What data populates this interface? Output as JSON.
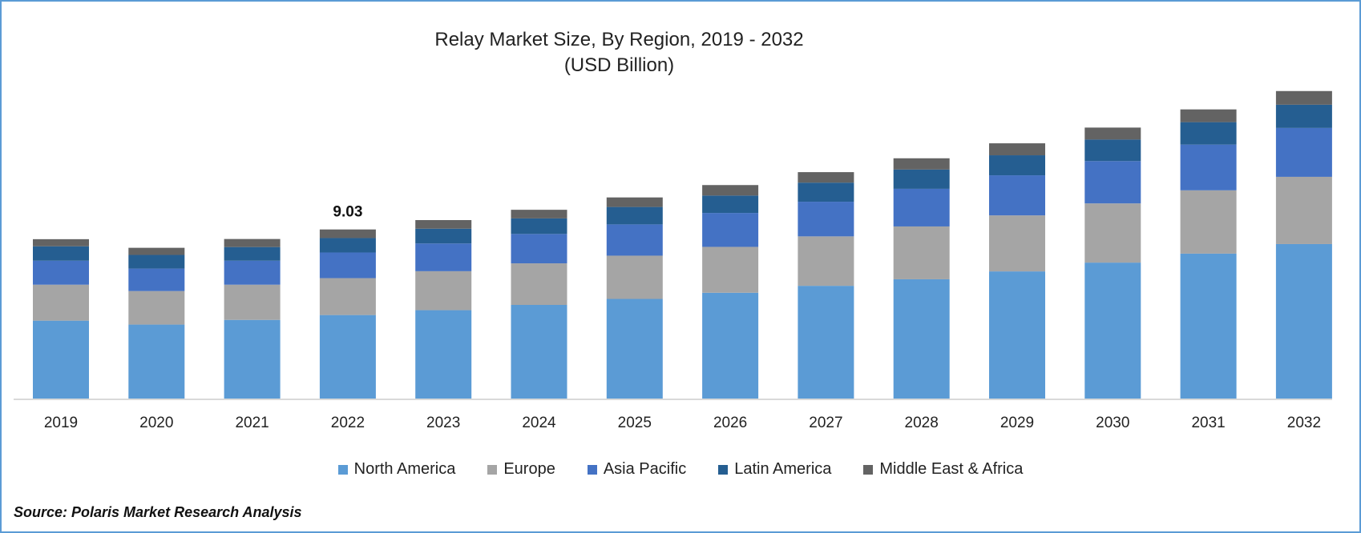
{
  "chart_data": {
    "type": "bar",
    "stacked": true,
    "title": "Relay Market Size, By Region, 2019 - 2032",
    "subtitle": "(USD Billion)",
    "categories": [
      "2019",
      "2020",
      "2021",
      "2022",
      "2023",
      "2024",
      "2025",
      "2026",
      "2027",
      "2028",
      "2029",
      "2030",
      "2031",
      "2032"
    ],
    "series": [
      {
        "name": "North America",
        "color": "#5b9bd5",
        "values": [
          4.16,
          3.95,
          4.2,
          4.46,
          4.72,
          5.0,
          5.32,
          5.65,
          6.02,
          6.37,
          6.79,
          7.26,
          7.74,
          8.25
        ]
      },
      {
        "name": "Europe",
        "color": "#a5a5a5",
        "values": [
          1.92,
          1.79,
          1.88,
          1.97,
          2.08,
          2.22,
          2.31,
          2.45,
          2.64,
          2.82,
          2.99,
          3.16,
          3.38,
          3.59
        ]
      },
      {
        "name": "Asia Pacific",
        "color": "#4472c4",
        "values": [
          1.28,
          1.2,
          1.28,
          1.37,
          1.48,
          1.57,
          1.67,
          1.81,
          1.85,
          2.01,
          2.14,
          2.26,
          2.44,
          2.61
        ]
      },
      {
        "name": "Latin America",
        "color": "#255e91",
        "values": [
          0.77,
          0.73,
          0.73,
          0.77,
          0.79,
          0.83,
          0.93,
          0.93,
          1.02,
          1.03,
          1.07,
          1.15,
          1.2,
          1.24
        ]
      },
      {
        "name": "Middle East & Africa",
        "color": "#636363",
        "values": [
          0.38,
          0.38,
          0.43,
          0.46,
          0.46,
          0.46,
          0.51,
          0.56,
          0.56,
          0.6,
          0.64,
          0.64,
          0.68,
          0.73
        ]
      }
    ],
    "annotations": [
      {
        "category": "2022",
        "label": "9.03"
      }
    ],
    "legend_position": "bottom",
    "grid": false,
    "yaxis_visible": false
  },
  "source": "Source: Polaris Market Research Analysis"
}
